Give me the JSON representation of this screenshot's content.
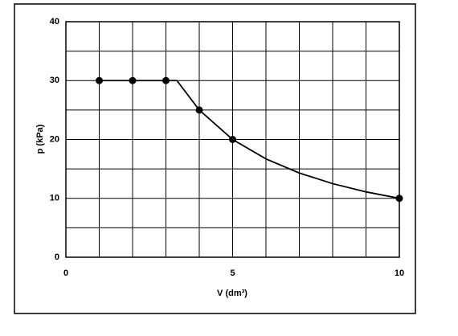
{
  "chart_data": {
    "type": "line",
    "x_label": "V (dm³)",
    "y_label": "p (kPa)",
    "xlim": [
      0,
      10
    ],
    "ylim": [
      0,
      40
    ],
    "xticks": [
      0,
      5,
      10
    ],
    "yticks": [
      0,
      10,
      20,
      30,
      40
    ],
    "x_grid": [
      0,
      1,
      2,
      3,
      4,
      5,
      6,
      7,
      8,
      9,
      10
    ],
    "y_grid": [
      0,
      5,
      10,
      15,
      20,
      25,
      30,
      35,
      40
    ],
    "color": "#000000",
    "series": [
      {
        "x": [
          1,
          2,
          3,
          3.33,
          4,
          5,
          6,
          7,
          8,
          9,
          10
        ],
        "values": [
          30,
          30,
          30,
          30,
          25,
          20,
          16.7,
          14.3,
          12.5,
          11.1,
          10
        ],
        "markers": false
      },
      {
        "x": [
          1,
          2,
          3,
          4,
          5,
          10
        ],
        "values": [
          30,
          30,
          30,
          25,
          20,
          10
        ],
        "markers": true
      }
    ]
  }
}
